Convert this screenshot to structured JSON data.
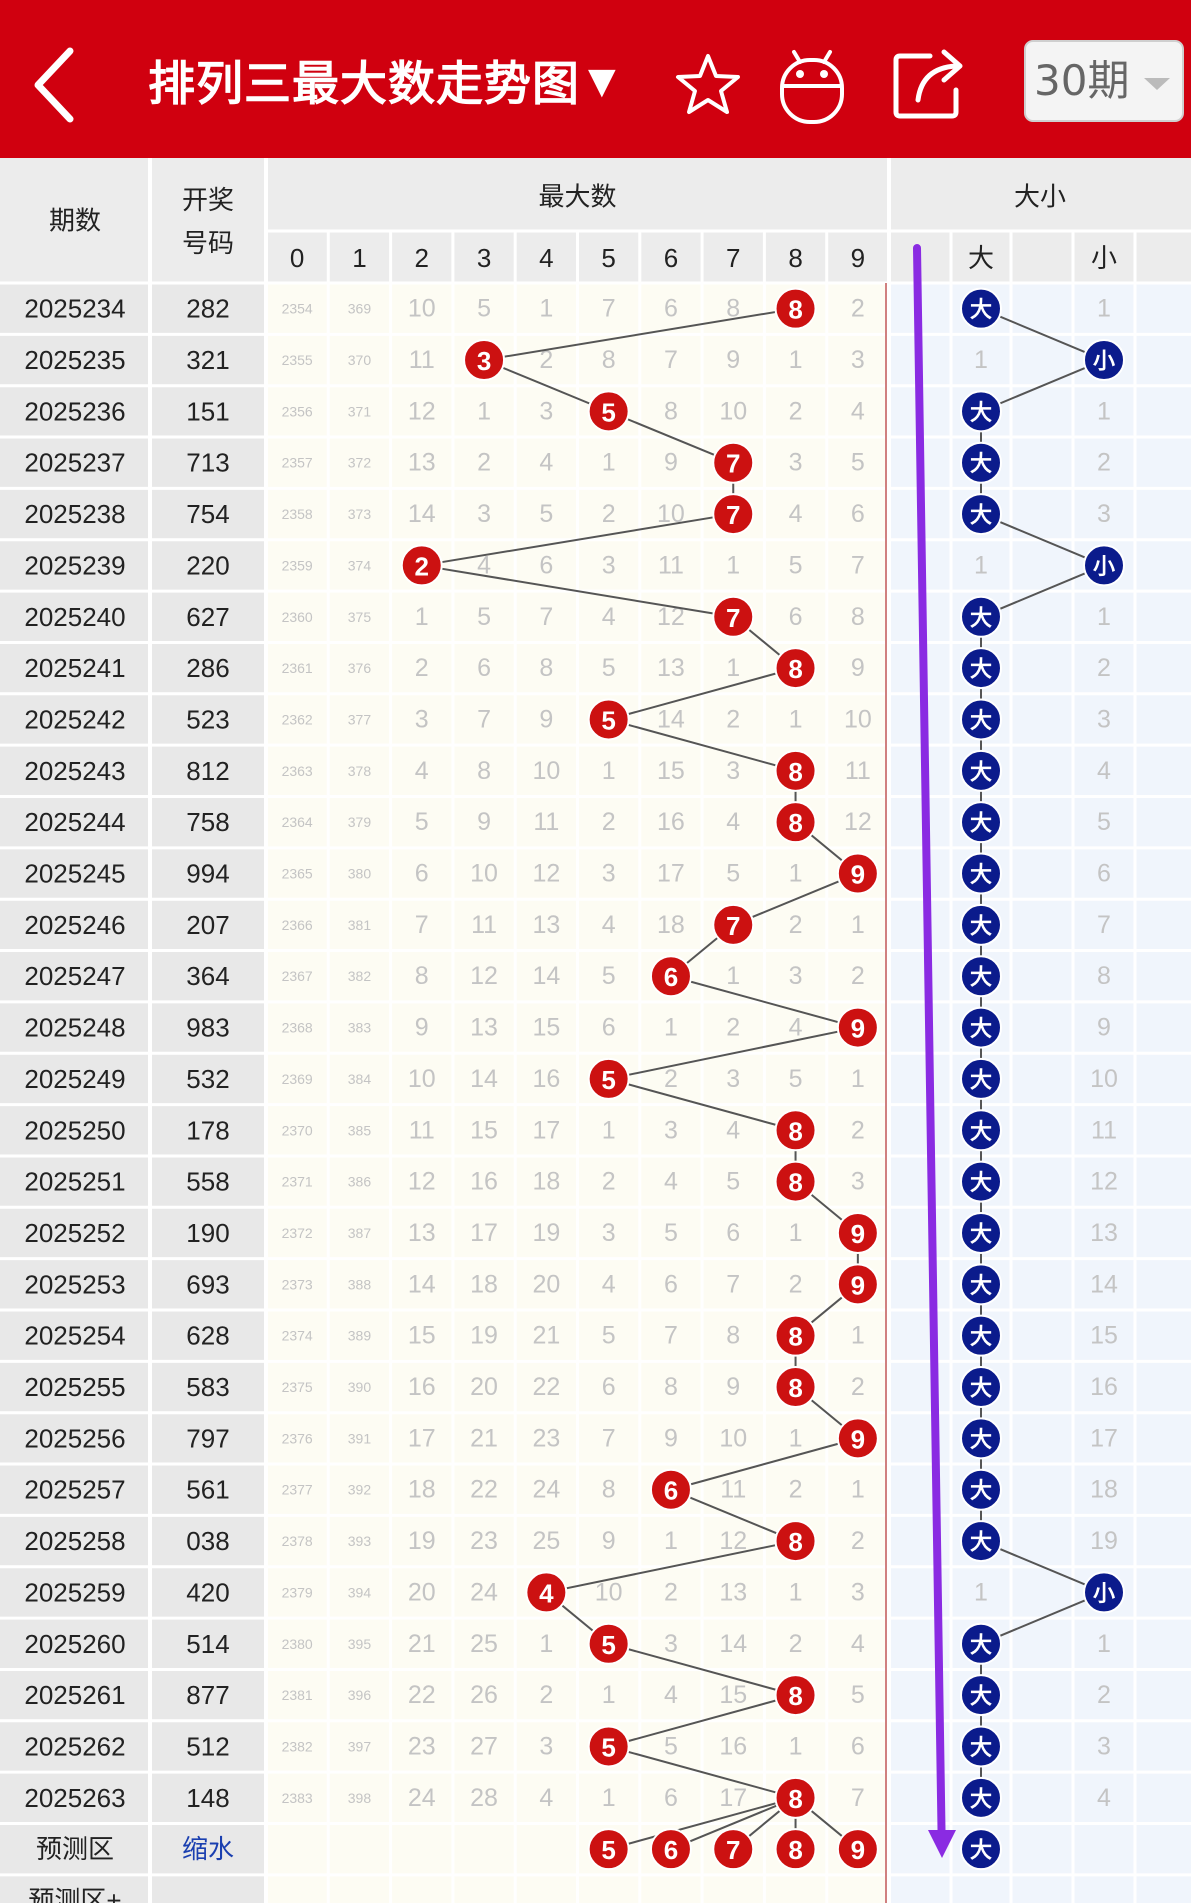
{
  "topbar": {
    "title": "排列三最大数走势图",
    "title_caret": "▼",
    "period_label": "30期",
    "icons": [
      "back-arrow-icon",
      "favorite-star-icon",
      "robot-icon",
      "share-icon"
    ]
  },
  "table": {
    "headers": {
      "period": "期数",
      "draw_line1": "开奖",
      "draw_line2": "号码",
      "max_group": "最大数",
      "size_group": "大小",
      "big": "大",
      "small": "小"
    },
    "digit_columns": [
      "0",
      "1",
      "2",
      "3",
      "4",
      "5",
      "6",
      "7",
      "8",
      "9"
    ],
    "rows": [
      {
        "period": "2025234",
        "draw": "282",
        "misses": [
          "2354",
          "369",
          "10",
          "5",
          "1",
          "7",
          "6",
          "8",
          "8",
          "2"
        ],
        "max": 8,
        "size": "大",
        "big_miss": "",
        "small_miss": "1"
      },
      {
        "period": "2025235",
        "draw": "321",
        "misses": [
          "2355",
          "370",
          "11",
          "3",
          "2",
          "8",
          "7",
          "9",
          "1",
          "3"
        ],
        "max": 3,
        "size": "小",
        "big_miss": "1",
        "small_miss": ""
      },
      {
        "period": "2025236",
        "draw": "151",
        "misses": [
          "2356",
          "371",
          "12",
          "1",
          "3",
          "5",
          "8",
          "10",
          "2",
          "4"
        ],
        "max": 5,
        "size": "大",
        "big_miss": "",
        "small_miss": "1"
      },
      {
        "period": "2025237",
        "draw": "713",
        "misses": [
          "2357",
          "372",
          "13",
          "2",
          "4",
          "1",
          "9",
          "7",
          "3",
          "5"
        ],
        "max": 7,
        "size": "大",
        "big_miss": "",
        "small_miss": "2"
      },
      {
        "period": "2025238",
        "draw": "754",
        "misses": [
          "2358",
          "373",
          "14",
          "3",
          "5",
          "2",
          "10",
          "7",
          "4",
          "6"
        ],
        "max": 7,
        "size": "大",
        "big_miss": "",
        "small_miss": "3"
      },
      {
        "period": "2025239",
        "draw": "220",
        "misses": [
          "2359",
          "374",
          "2",
          "4",
          "6",
          "3",
          "11",
          "1",
          "5",
          "7"
        ],
        "max": 2,
        "size": "小",
        "big_miss": "1",
        "small_miss": ""
      },
      {
        "period": "2025240",
        "draw": "627",
        "misses": [
          "2360",
          "375",
          "1",
          "5",
          "7",
          "4",
          "12",
          "7",
          "6",
          "8"
        ],
        "max": 7,
        "size": "大",
        "big_miss": "",
        "small_miss": "1"
      },
      {
        "period": "2025241",
        "draw": "286",
        "misses": [
          "2361",
          "376",
          "2",
          "6",
          "8",
          "5",
          "13",
          "1",
          "8",
          "9"
        ],
        "max": 8,
        "size": "大",
        "big_miss": "",
        "small_miss": "2"
      },
      {
        "period": "2025242",
        "draw": "523",
        "misses": [
          "2362",
          "377",
          "3",
          "7",
          "9",
          "5",
          "14",
          "2",
          "1",
          "10"
        ],
        "max": 5,
        "size": "大",
        "big_miss": "",
        "small_miss": "3"
      },
      {
        "period": "2025243",
        "draw": "812",
        "misses": [
          "2363",
          "378",
          "4",
          "8",
          "10",
          "1",
          "15",
          "3",
          "8",
          "11"
        ],
        "max": 8,
        "size": "大",
        "big_miss": "",
        "small_miss": "4"
      },
      {
        "period": "2025244",
        "draw": "758",
        "misses": [
          "2364",
          "379",
          "5",
          "9",
          "11",
          "2",
          "16",
          "4",
          "8",
          "12"
        ],
        "max": 8,
        "size": "大",
        "big_miss": "",
        "small_miss": "5"
      },
      {
        "period": "2025245",
        "draw": "994",
        "misses": [
          "2365",
          "380",
          "6",
          "10",
          "12",
          "3",
          "17",
          "5",
          "1",
          "9"
        ],
        "max": 9,
        "size": "大",
        "big_miss": "",
        "small_miss": "6"
      },
      {
        "period": "2025246",
        "draw": "207",
        "misses": [
          "2366",
          "381",
          "7",
          "11",
          "13",
          "4",
          "18",
          "7",
          "2",
          "1"
        ],
        "max": 7,
        "size": "大",
        "big_miss": "",
        "small_miss": "7"
      },
      {
        "period": "2025247",
        "draw": "364",
        "misses": [
          "2367",
          "382",
          "8",
          "12",
          "14",
          "5",
          "6",
          "1",
          "3",
          "2"
        ],
        "max": 6,
        "size": "大",
        "big_miss": "",
        "small_miss": "8"
      },
      {
        "period": "2025248",
        "draw": "983",
        "misses": [
          "2368",
          "383",
          "9",
          "13",
          "15",
          "6",
          "1",
          "2",
          "4",
          "9"
        ],
        "max": 9,
        "size": "大",
        "big_miss": "",
        "small_miss": "9"
      },
      {
        "period": "2025249",
        "draw": "532",
        "misses": [
          "2369",
          "384",
          "10",
          "14",
          "16",
          "5",
          "2",
          "3",
          "5",
          "1"
        ],
        "max": 5,
        "size": "大",
        "big_miss": "",
        "small_miss": "10"
      },
      {
        "period": "2025250",
        "draw": "178",
        "misses": [
          "2370",
          "385",
          "11",
          "15",
          "17",
          "1",
          "3",
          "4",
          "8",
          "2"
        ],
        "max": 8,
        "size": "大",
        "big_miss": "",
        "small_miss": "11"
      },
      {
        "period": "2025251",
        "draw": "558",
        "misses": [
          "2371",
          "386",
          "12",
          "16",
          "18",
          "2",
          "4",
          "5",
          "8",
          "3"
        ],
        "max": 8,
        "size": "大",
        "big_miss": "",
        "small_miss": "12"
      },
      {
        "period": "2025252",
        "draw": "190",
        "misses": [
          "2372",
          "387",
          "13",
          "17",
          "19",
          "3",
          "5",
          "6",
          "1",
          "9"
        ],
        "max": 9,
        "size": "大",
        "big_miss": "",
        "small_miss": "13"
      },
      {
        "period": "2025253",
        "draw": "693",
        "misses": [
          "2373",
          "388",
          "14",
          "18",
          "20",
          "4",
          "6",
          "7",
          "2",
          "9"
        ],
        "max": 9,
        "size": "大",
        "big_miss": "",
        "small_miss": "14"
      },
      {
        "period": "2025254",
        "draw": "628",
        "misses": [
          "2374",
          "389",
          "15",
          "19",
          "21",
          "5",
          "7",
          "8",
          "8",
          "1"
        ],
        "max": 8,
        "size": "大",
        "big_miss": "",
        "small_miss": "15"
      },
      {
        "period": "2025255",
        "draw": "583",
        "misses": [
          "2375",
          "390",
          "16",
          "20",
          "22",
          "6",
          "8",
          "9",
          "8",
          "2"
        ],
        "max": 8,
        "size": "大",
        "big_miss": "",
        "small_miss": "16"
      },
      {
        "period": "2025256",
        "draw": "797",
        "misses": [
          "2376",
          "391",
          "17",
          "21",
          "23",
          "7",
          "9",
          "10",
          "1",
          "9"
        ],
        "max": 9,
        "size": "大",
        "big_miss": "",
        "small_miss": "17"
      },
      {
        "period": "2025257",
        "draw": "561",
        "misses": [
          "2377",
          "392",
          "18",
          "22",
          "24",
          "8",
          "6",
          "11",
          "2",
          "1"
        ],
        "max": 6,
        "size": "大",
        "big_miss": "",
        "small_miss": "18"
      },
      {
        "period": "2025258",
        "draw": "038",
        "misses": [
          "2378",
          "393",
          "19",
          "23",
          "25",
          "9",
          "1",
          "12",
          "8",
          "2"
        ],
        "max": 8,
        "size": "大",
        "big_miss": "",
        "small_miss": "19"
      },
      {
        "period": "2025259",
        "draw": "420",
        "misses": [
          "2379",
          "394",
          "20",
          "24",
          "4",
          "10",
          "2",
          "13",
          "1",
          "3"
        ],
        "max": 4,
        "size": "小",
        "big_miss": "1",
        "small_miss": ""
      },
      {
        "period": "2025260",
        "draw": "514",
        "misses": [
          "2380",
          "395",
          "21",
          "25",
          "1",
          "5",
          "3",
          "14",
          "2",
          "4"
        ],
        "max": 5,
        "size": "大",
        "big_miss": "",
        "small_miss": "1"
      },
      {
        "period": "2025261",
        "draw": "877",
        "misses": [
          "2381",
          "396",
          "22",
          "26",
          "2",
          "1",
          "4",
          "15",
          "8",
          "5"
        ],
        "max": 8,
        "size": "大",
        "big_miss": "",
        "small_miss": "2"
      },
      {
        "period": "2025262",
        "draw": "512",
        "misses": [
          "2382",
          "397",
          "23",
          "27",
          "3",
          "5",
          "5",
          "16",
          "1",
          "6"
        ],
        "max": 5,
        "size": "大",
        "big_miss": "",
        "small_miss": "3"
      },
      {
        "period": "2025263",
        "draw": "148",
        "misses": [
          "2383",
          "398",
          "24",
          "28",
          "4",
          "1",
          "6",
          "17",
          "8",
          "7"
        ],
        "max": 8,
        "size": "大",
        "big_miss": "",
        "small_miss": "4"
      }
    ],
    "prediction": {
      "label": "预测区",
      "link_text": "缩水",
      "numbers": [
        "5",
        "6",
        "7",
        "8",
        "9"
      ],
      "size": "大"
    },
    "prediction_plus_label": "预测区+"
  },
  "colors": {
    "brand_red": "#d0000f",
    "ball_red": "#cc1111",
    "ball_blue": "#0b1b8c",
    "annotation_arrow": "#8a2be2",
    "link_blue": "#1a3fb0"
  }
}
